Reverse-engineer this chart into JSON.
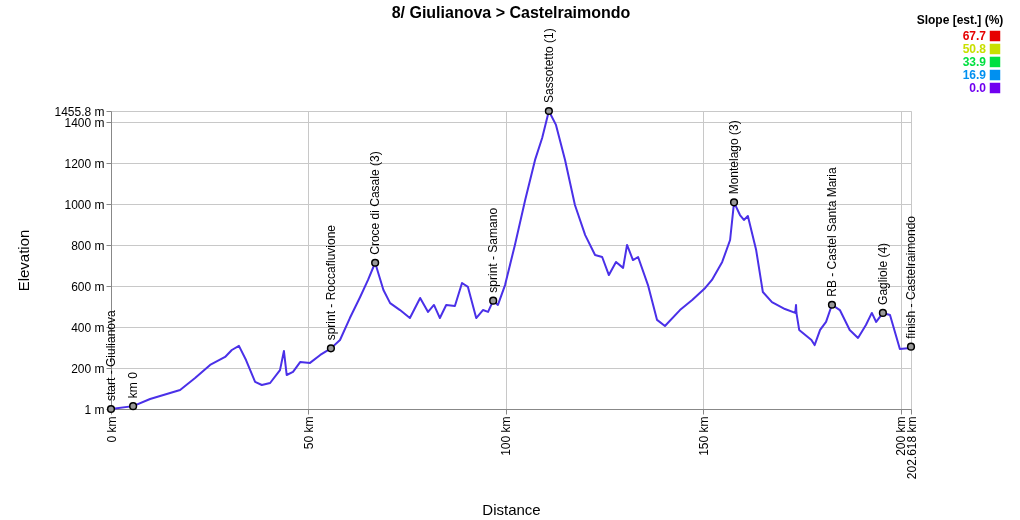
{
  "chart_data": {
    "type": "line",
    "title": "8/ Giulianova > Castelraimondo",
    "xlabel": "Distance",
    "ylabel": "Elevation",
    "xlim": [
      0,
      202.618
    ],
    "xticks": [
      {
        "value": 0,
        "label": "0 km"
      },
      {
        "value": 50,
        "label": "50 km"
      },
      {
        "value": 100,
        "label": "100 km"
      },
      {
        "value": 150,
        "label": "150 km"
      },
      {
        "value": 200,
        "label": "200 km"
      },
      {
        "value": 202.618,
        "label": "202.618 km"
      }
    ],
    "ylim": [
      1,
      1455.8
    ],
    "yticks": [
      {
        "value": 1,
        "label": "1 m"
      },
      {
        "value": 200,
        "label": "200 m"
      },
      {
        "value": 400,
        "label": "400 m"
      },
      {
        "value": 600,
        "label": "600 m"
      },
      {
        "value": 800,
        "label": "800 m"
      },
      {
        "value": 1000,
        "label": "1000 m"
      },
      {
        "value": 1200,
        "label": "1200 m"
      },
      {
        "value": 1400,
        "label": "1400 m"
      },
      {
        "value": 1455.8,
        "label": "1455.8 m"
      }
    ],
    "grid": true,
    "line_style": "solid",
    "clabel": "Slope [est.] (%)",
    "clim": [
      0,
      67.7
    ],
    "cticks": [
      {
        "value": 67.7,
        "label": "67.7"
      },
      {
        "value": 50.8,
        "label": "50.8"
      },
      {
        "value": 33.9,
        "label": "33.9"
      },
      {
        "value": 16.9,
        "label": "16.9"
      },
      {
        "value": 0,
        "label": "0.0"
      }
    ],
    "colors": [
      "#e60000",
      "#c8e000",
      "#00e040",
      "#0090f0",
      "#7000f0"
    ],
    "series": [
      {
        "color": "#4a30e8",
        "x": [
          0,
          5.6,
          9.9,
          17.5,
          21.3,
          25.1,
          28.9,
          30.6,
          32.4,
          34.2,
          36.5,
          38.2,
          40.3,
          42.8,
          43.8,
          44.5,
          46.1,
          47.9,
          50.4,
          53,
          55.7,
          58,
          60.5,
          63.1,
          65.1,
          66.9,
          69,
          70.7,
          73.2,
          75.7,
          78.3,
          80.3,
          81.8,
          83.3,
          84.9,
          87.1,
          88.9,
          90.4,
          92.5,
          94.2,
          95.5,
          96.8,
          98,
          99.8,
          102.3,
          104.9,
          107.4,
          109.2,
          110.9,
          112.7,
          115,
          117.5,
          120.1,
          122.6,
          124.4,
          126.1,
          127.9,
          129.7,
          130.7,
          132.2,
          133.5,
          136,
          138.3,
          140.3,
          144.1,
          147.2,
          150.5,
          152.2,
          154.8,
          156.8,
          157.8,
          159.3,
          160.3,
          161.3,
          163.4,
          165.1,
          167.4,
          170.7,
          173.3,
          173.5,
          173.6,
          174.3,
          177.4,
          178.2,
          179.6,
          181.1,
          182.6,
          184.6,
          187.1,
          189.2,
          191.2,
          192.7,
          193.8,
          195.5,
          197.3,
          199.8,
          202.4,
          202.618
        ],
        "values": [
          1,
          15,
          50,
          94,
          152,
          216,
          255,
          289,
          309,
          240,
          133,
          118,
          128,
          191,
          284,
          167,
          182,
          230,
          226,
          265,
          297,
          338,
          445,
          548,
          631,
          715,
          582,
          518,
          484,
          445,
          543,
          475,
          509,
          445,
          509,
          504,
          616,
          597,
          445,
          484,
          475,
          530,
          509,
          606,
          802,
          1021,
          1217,
          1324,
          1455.8,
          1388,
          1217,
          997,
          850,
          753,
          743,
          655,
          719,
          690,
          802,
          728,
          743,
          606,
          436,
          406,
          484,
          533,
          592,
          631,
          719,
          826,
          1010,
          948,
          924,
          943,
          777,
          572,
          523,
          489,
          470,
          509,
          470,
          387,
          338,
          313,
          387,
          426,
          510,
          484,
          387,
          348,
          411,
          470,
          426,
          470,
          460,
          294,
          299,
          305
        ]
      },
      {
        "type": "scatter",
        "color": "#999999",
        "marker": "circle",
        "x": [
          0,
          5.6,
          55.7,
          66.9,
          96.8,
          110.9,
          157.8,
          182.6,
          195.5,
          202.618
        ],
        "values": [
          1,
          15,
          297,
          715,
          530,
          1455.8,
          1010,
          510,
          470,
          305
        ]
      }
    ],
    "annotations": [
      {
        "text": "start - Giulianova",
        "x": 0,
        "y": 1
      },
      {
        "text": "km 0",
        "x": 5.6,
        "y": 15
      },
      {
        "text": "sprint - Roccafluvione",
        "x": 55.7,
        "y": 297
      },
      {
        "text": "Croce di Casale (3)",
        "x": 66.9,
        "y": 715
      },
      {
        "text": "sprint - Samano",
        "x": 96.8,
        "y": 530
      },
      {
        "text": "Sassotetto (1)",
        "x": 110.9,
        "y": 1455.8
      },
      {
        "text": "Montelago (3)",
        "x": 157.8,
        "y": 1010
      },
      {
        "text": "RB - Castel Santa Maria",
        "x": 182.6,
        "y": 510
      },
      {
        "text": "Gagliole (4)",
        "x": 195.5,
        "y": 470
      },
      {
        "text": "finish - Castelraimondo",
        "x": 202.618,
        "y": 305
      }
    ]
  }
}
